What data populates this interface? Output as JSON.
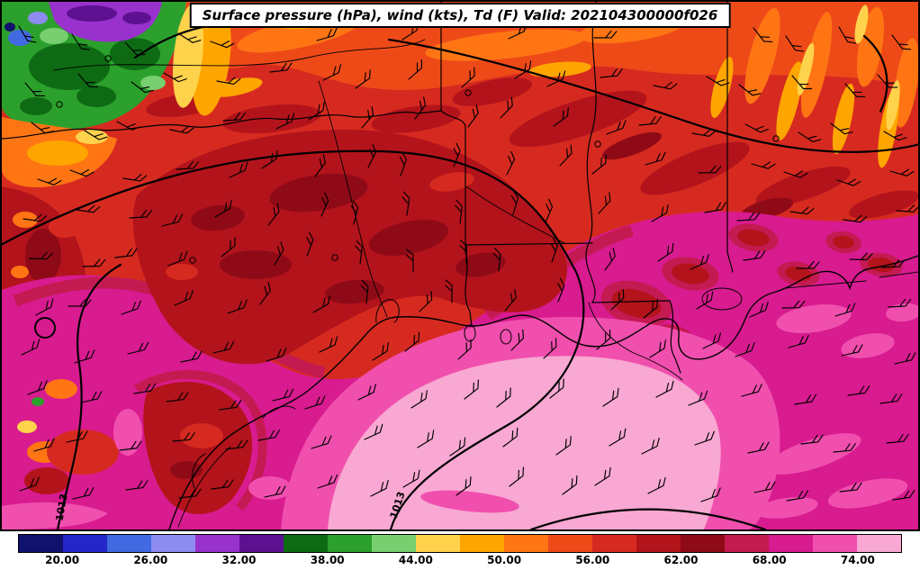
{
  "title": "Surface pressure (hPa), wind (kts), Td (F) Valid: 202104300000f026",
  "chart_data": {
    "type": "heatmap",
    "title": "Surface pressure (hPa), wind (kts), Td (F) Valid: 202104300000f026",
    "field": "surface dewpoint temperature Td (F), filled contours over TX/LA/Gulf Coast region",
    "overlays": [
      "surface pressure isobars (hPa)",
      "wind barbs (kts)",
      "state borders and coastline"
    ],
    "valid_string": "202104300000f026",
    "contour_labels": [
      "1013",
      "1013"
    ],
    "colorbar": {
      "orientation": "horizontal",
      "tick_labels": [
        "20.00",
        "26.00",
        "32.00",
        "38.00",
        "44.00",
        "50.00",
        "56.00",
        "62.00",
        "68.00",
        "74.00"
      ],
      "tick_values": [
        20,
        26,
        32,
        38,
        44,
        50,
        56,
        62,
        68,
        74
      ],
      "domain_min": 17,
      "domain_max": 77,
      "level_step": 3,
      "colors": [
        "#11116e",
        "#2526c9",
        "#4169e1",
        "#8d8bf0",
        "#9932cc",
        "#5d1191",
        "#0e6b14",
        "#2ca02c",
        "#77cf70",
        "#ffd24c",
        "#ffa500",
        "#ff7514",
        "#ee4a18",
        "#d62a20",
        "#b3131b",
        "#8f0a17",
        "#c41a52",
        "#d81b8f",
        "#f04fae",
        "#f8a8d2"
      ]
    },
    "line_color": "#000000",
    "background_color": "#ffffff"
  }
}
